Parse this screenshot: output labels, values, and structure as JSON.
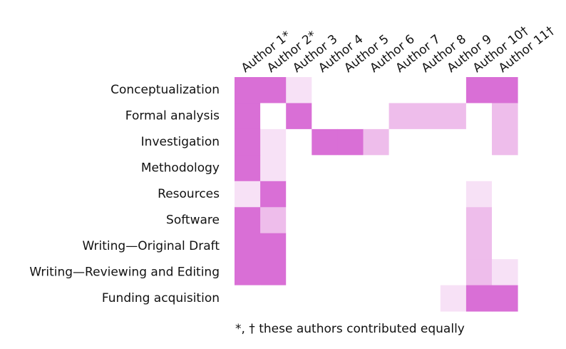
{
  "chart_data": {
    "type": "heatmap",
    "categories": [
      "Author 1*",
      "Author 2*",
      "Author 3",
      "Author 4",
      "Author 5",
      "Author 6",
      "Author 7",
      "Author 8",
      "Author 9",
      "Author 10†",
      "Author 11†"
    ],
    "rows": [
      "Conceptualization",
      "Formal analysis",
      "Investigation",
      "Methodology",
      "Resources",
      "Software",
      "Writing—Original Draft",
      "Writing—Reviewing and Editing",
      "Funding acquisition"
    ],
    "values": [
      [
        3,
        3,
        1,
        0,
        0,
        0,
        0,
        0,
        0,
        3,
        3
      ],
      [
        3,
        0,
        3,
        0,
        0,
        0,
        2,
        2,
        2,
        0,
        2
      ],
      [
        3,
        1,
        0,
        3,
        3,
        2,
        0,
        0,
        0,
        0,
        2
      ],
      [
        3,
        1,
        0,
        0,
        0,
        0,
        0,
        0,
        0,
        0,
        0
      ],
      [
        1,
        3,
        0,
        0,
        0,
        0,
        0,
        0,
        0,
        1,
        0
      ],
      [
        3,
        2,
        0,
        0,
        0,
        0,
        0,
        0,
        0,
        2,
        0
      ],
      [
        3,
        3,
        0,
        0,
        0,
        0,
        0,
        0,
        0,
        2,
        0
      ],
      [
        3,
        3,
        0,
        0,
        0,
        0,
        0,
        0,
        0,
        2,
        1
      ],
      [
        0,
        0,
        0,
        0,
        0,
        0,
        0,
        0,
        1,
        3,
        3
      ]
    ],
    "colors": [
      "#ffffff",
      "#f7e1f6",
      "#eebdeb",
      "#d96fd6"
    ],
    "note": "*, † these authors contributed equally"
  }
}
